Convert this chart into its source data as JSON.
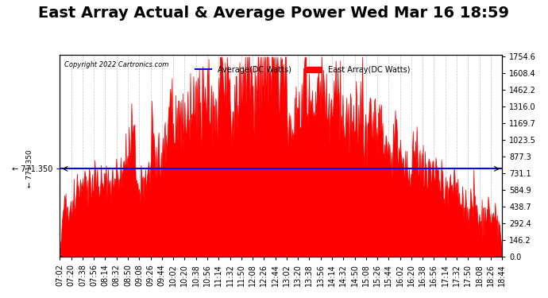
{
  "title": "East Array Actual & Average Power Wed Mar 16 18:59",
  "copyright": "Copyright 2022 Cartronics.com",
  "legend_average": "Average(DC Watts)",
  "legend_east": "East Array(DC Watts)",
  "average_value": 771.35,
  "y_max": 1754.6,
  "y_min": 0.0,
  "y_ticks": [
    0.0,
    146.2,
    292.4,
    438.7,
    584.9,
    731.1,
    877.3,
    1023.5,
    1169.7,
    1316.0,
    1462.2,
    1608.4,
    1754.6
  ],
  "background_color": "#ffffff",
  "plot_bg_color": "#ffffff",
  "grid_color": "#aaaaaa",
  "fill_color": "#ff0000",
  "average_line_color": "#0000ff",
  "title_fontsize": 14,
  "tick_fontsize": 7,
  "x_tick_labels": [
    "07:02",
    "07:20",
    "07:38",
    "07:56",
    "08:14",
    "08:32",
    "08:50",
    "09:08",
    "09:26",
    "09:44",
    "10:02",
    "10:20",
    "10:38",
    "10:56",
    "11:14",
    "11:32",
    "11:50",
    "12:08",
    "12:26",
    "12:44",
    "13:02",
    "13:20",
    "13:38",
    "13:56",
    "14:14",
    "14:32",
    "14:50",
    "15:08",
    "15:26",
    "15:44",
    "16:02",
    "16:20",
    "16:38",
    "16:56",
    "17:14",
    "17:32",
    "17:50",
    "18:08",
    "18:26",
    "18:44"
  ]
}
